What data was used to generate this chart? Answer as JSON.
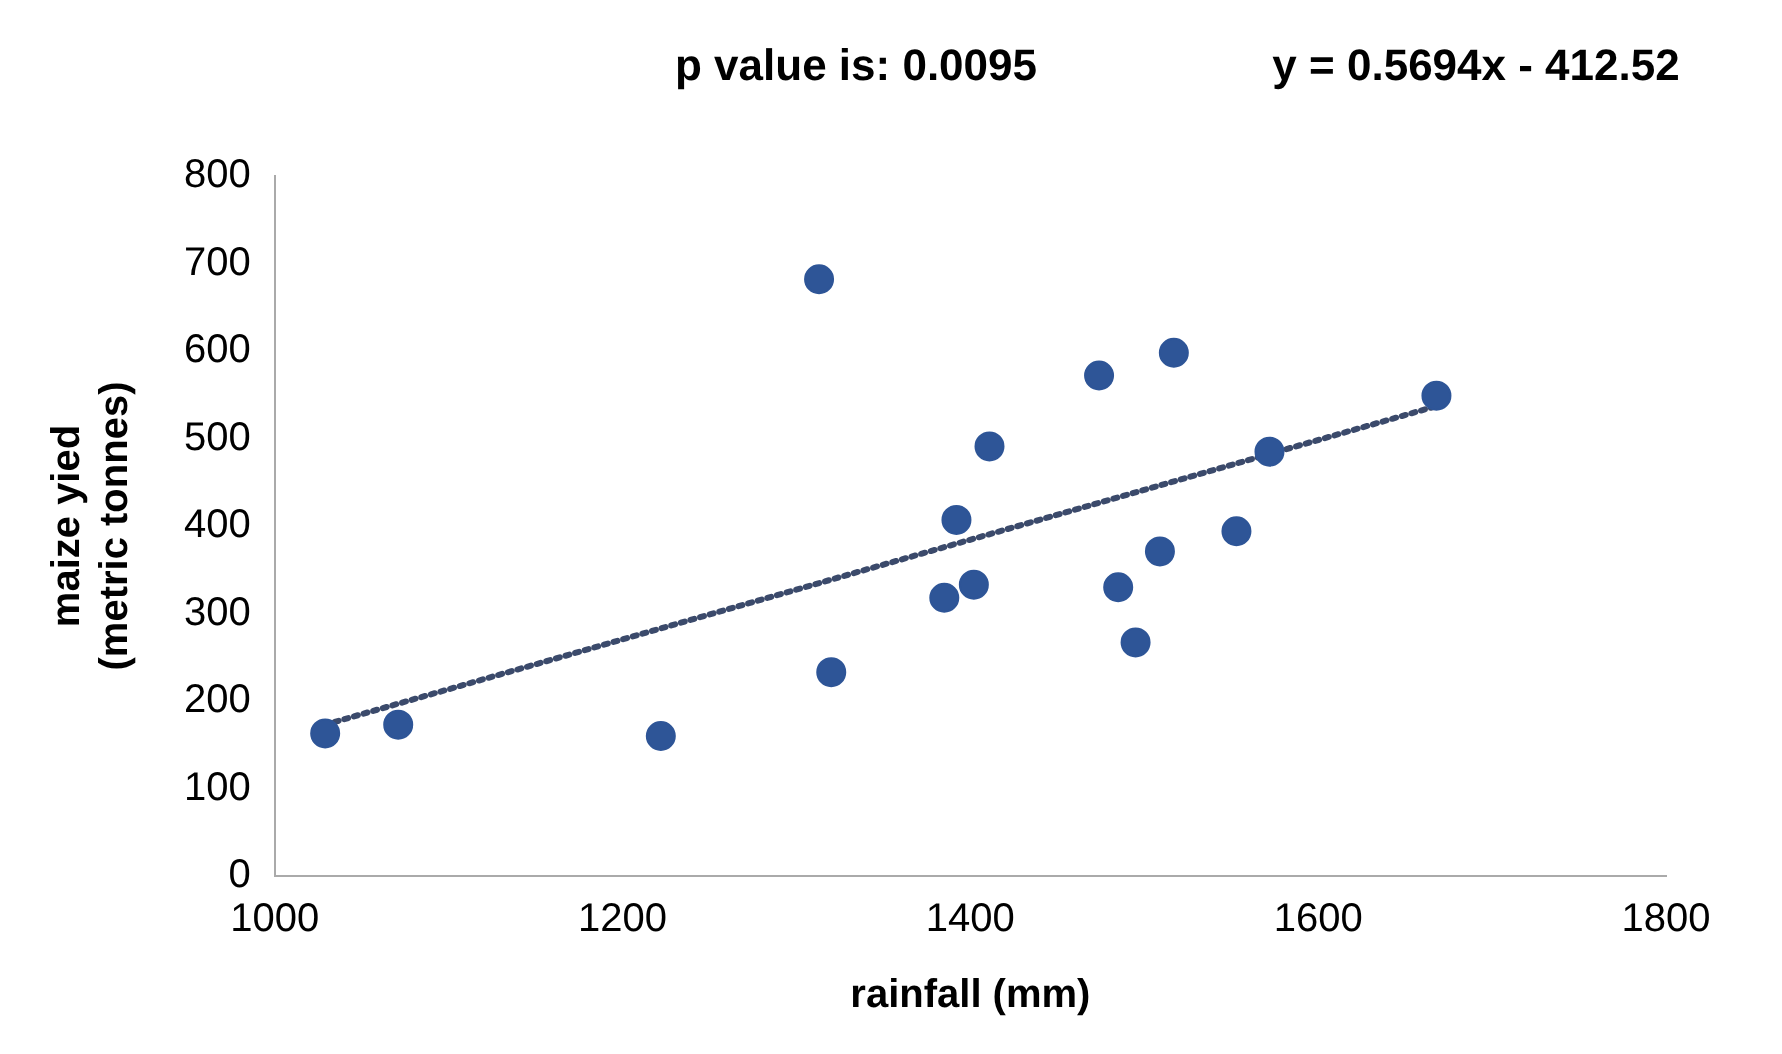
{
  "chart_data": {
    "type": "scatter",
    "xlabel": "rainfall (mm)",
    "ylabel": "maize yied\n(metric tonnes)",
    "annotations": [
      "p value is: 0.0095",
      "y = 0.5694x - 412.52"
    ],
    "xlim": [
      1000,
      1800
    ],
    "xticks": [
      1000,
      1200,
      1400,
      1600,
      1800
    ],
    "ylim": [
      0,
      800
    ],
    "yticks": [
      0,
      100,
      200,
      300,
      400,
      500,
      600,
      700,
      800
    ],
    "grid": false,
    "legend": false,
    "marker": "circle",
    "series": [
      {
        "color": "#2e5597",
        "x": [
          1029,
          1071,
          1222,
          1313,
          1320,
          1385,
          1392,
          1402,
          1411,
          1474,
          1517,
          1485,
          1495,
          1509,
          1553,
          1572,
          1668
        ],
        "values": [
          163,
          173,
          160,
          682,
          233,
          318,
          407,
          333,
          491,
          572,
          598,
          330,
          267,
          371,
          394,
          485,
          549
        ]
      },
      {
        "type": "line",
        "color": "#3b4a6b",
        "line_style": "dotted",
        "marker": "none",
        "x": [
          1029,
          1668
        ],
        "values": [
          173,
          537
        ]
      }
    ]
  }
}
